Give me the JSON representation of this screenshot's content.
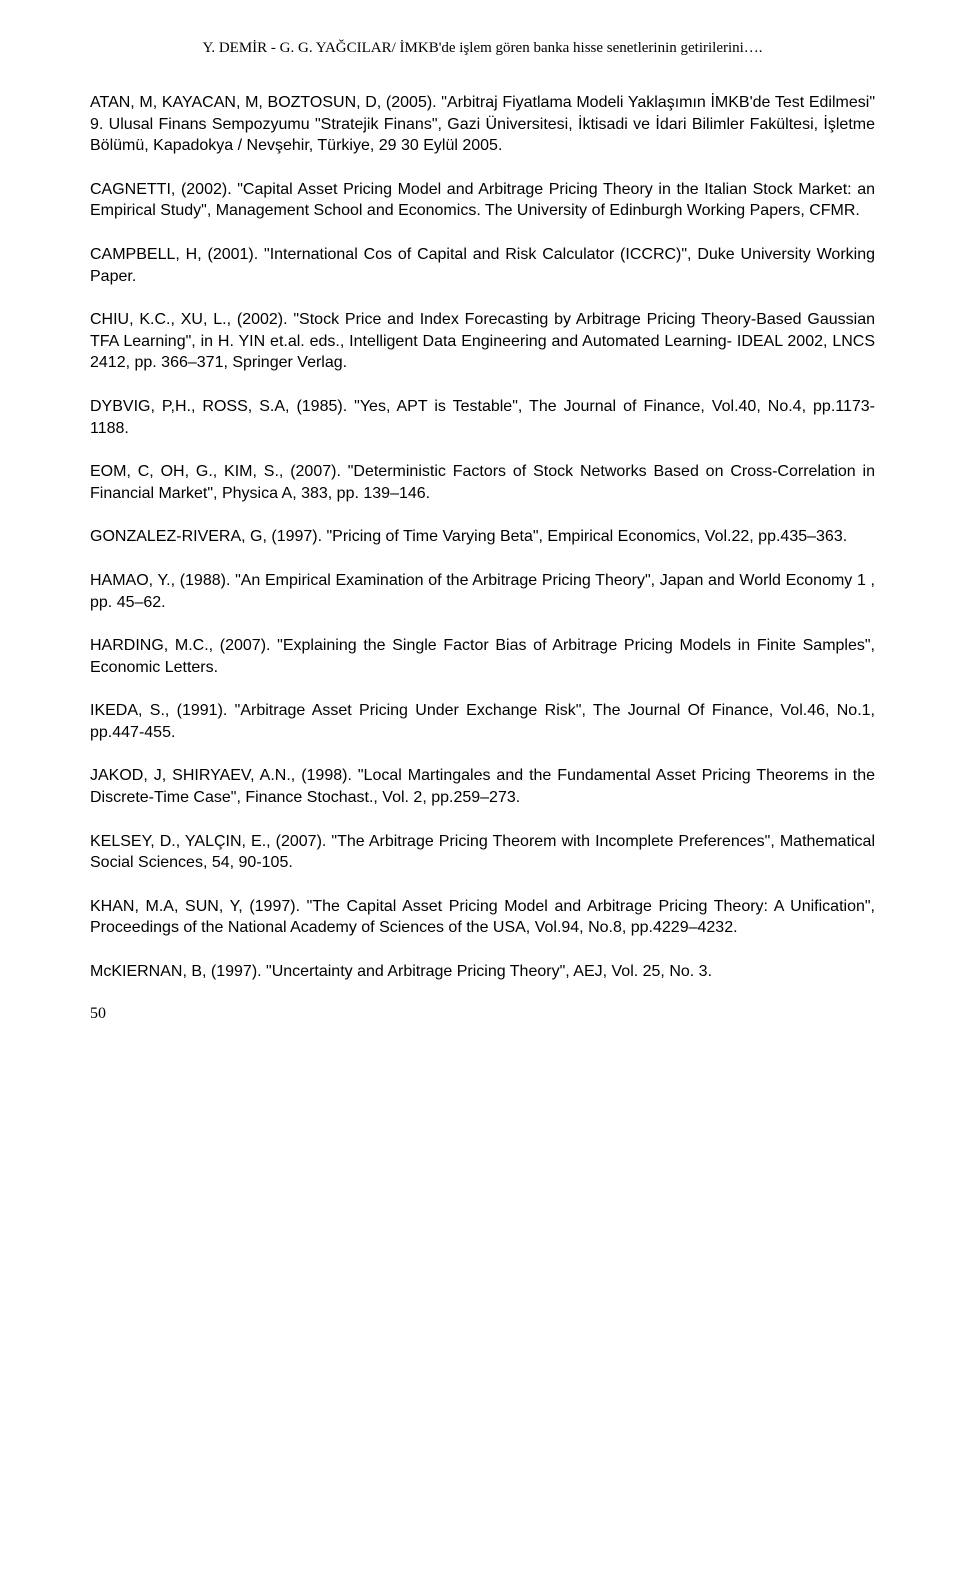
{
  "header": "Y. DEMİR - G. G. YAĞCILAR/  İMKB'de işlem gören banka hisse senetlerinin getirilerini….",
  "refs": [
    "ATAN, M, KAYACAN, M, BOZTOSUN, D, (2005). \"Arbitraj Fiyatlama Modeli Yaklaşımın İMKB'de Test Edilmesi\" 9. Ulusal Finans Sempozyumu \"Stratejik Finans\", Gazi Üniversitesi, İktisadi ve İdari Bilimler Fakültesi, İşletme Bölümü, Kapadokya / Nevşehir, Türkiye, 29 30 Eylül 2005.",
    "CAGNETTI, (2002). \"Capital Asset Pricing Model and Arbitrage Pricing Theory in the Italian Stock Market: an Empirical Study\", Management School and Economics. The University of Edinburgh Working Papers, CFMR.",
    "CAMPBELL, H, (2001). \"International Cos of Capital and Risk Calculator (ICCRC)\", Duke University Working Paper.",
    "CHIU, K.C., XU, L., (2002). \"Stock Price and Index Forecasting by Arbitrage Pricing Theory-Based Gaussian TFA Learning\", in H. YIN et.al. eds., Intelligent Data Engineering and Automated Learning- IDEAL 2002, LNCS 2412, pp. 366–371, Springer Verlag.",
    "DYBVIG, P,H., ROSS, S.A, (1985). \"Yes, APT is Testable\", The Journal of Finance, Vol.40, No.4, pp.1173-1188.",
    "EOM, C, OH, G., KIM, S., (2007). \"Deterministic Factors of Stock Networks Based on Cross-Correlation in Financial Market\", Physica A, 383, pp. 139–146.",
    "GONZALEZ-RIVERA, G, (1997). \"Pricing of Time Varying Beta\", Empirical Economics, Vol.22, pp.435–363.",
    "HAMAO, Y., (1988). \"An Empirical Examination of the Arbitrage Pricing Theory\", Japan and World Economy 1 , pp. 45–62.",
    "HARDING, M.C., (2007). \"Explaining the Single Factor Bias of Arbitrage Pricing Models in Finite Samples\", Economic Letters.",
    "IKEDA, S., (1991). \"Arbitrage Asset Pricing Under Exchange Risk\", The Journal Of Finance, Vol.46, No.1, pp.447-455.",
    "JAKOD, J, SHIRYAEV, A.N., (1998). \"Local Martingales and the Fundamental Asset Pricing Theorems in the Discrete-Time Case\", Finance Stochast., Vol. 2, pp.259–273.",
    "KELSEY, D., YALÇIN, E., (2007). \"The Arbitrage Pricing Theorem with Incomplete Preferences\", Mathematical Social Sciences, 54, 90-105.",
    "KHAN, M.A, SUN, Y, (1997). \"The Capital Asset Pricing Model and Arbitrage Pricing Theory: A Unification\", Proceedings of the National Academy of Sciences of the USA, Vol.94, No.8, pp.4229–4232.",
    "McKIERNAN, B, (1997). \"Uncertainty and Arbitrage Pricing Theory\", AEJ, Vol. 25, No. 3."
  ],
  "pageNumber": "50"
}
